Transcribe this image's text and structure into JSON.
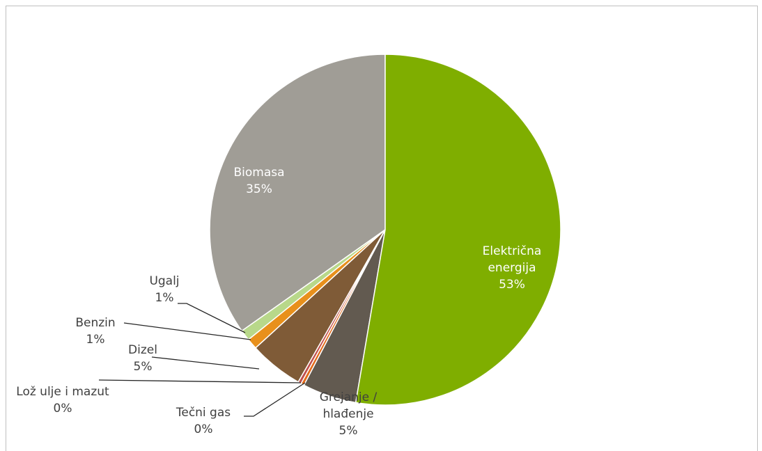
{
  "chart_data": {
    "type": "pie",
    "categories": [
      "Električna energija",
      "Grejanje / hlađenje",
      "Tečni gas",
      "Lož ulje i mazut",
      "Dizel",
      "Benzin",
      "Ugalj",
      "Biomasa"
    ],
    "values": [
      53,
      5,
      0.3,
      0.3,
      5,
      1,
      1,
      35
    ],
    "value_labels": [
      "53%",
      "5%",
      "0%",
      "0%",
      "5%",
      "1%",
      "1%",
      "35%"
    ],
    "colors": [
      "#7fae00",
      "#625a50",
      "#e36c1c",
      "#c0504d",
      "#7f5b37",
      "#e8901c",
      "#b8d88a",
      "#a09d96"
    ]
  }
}
